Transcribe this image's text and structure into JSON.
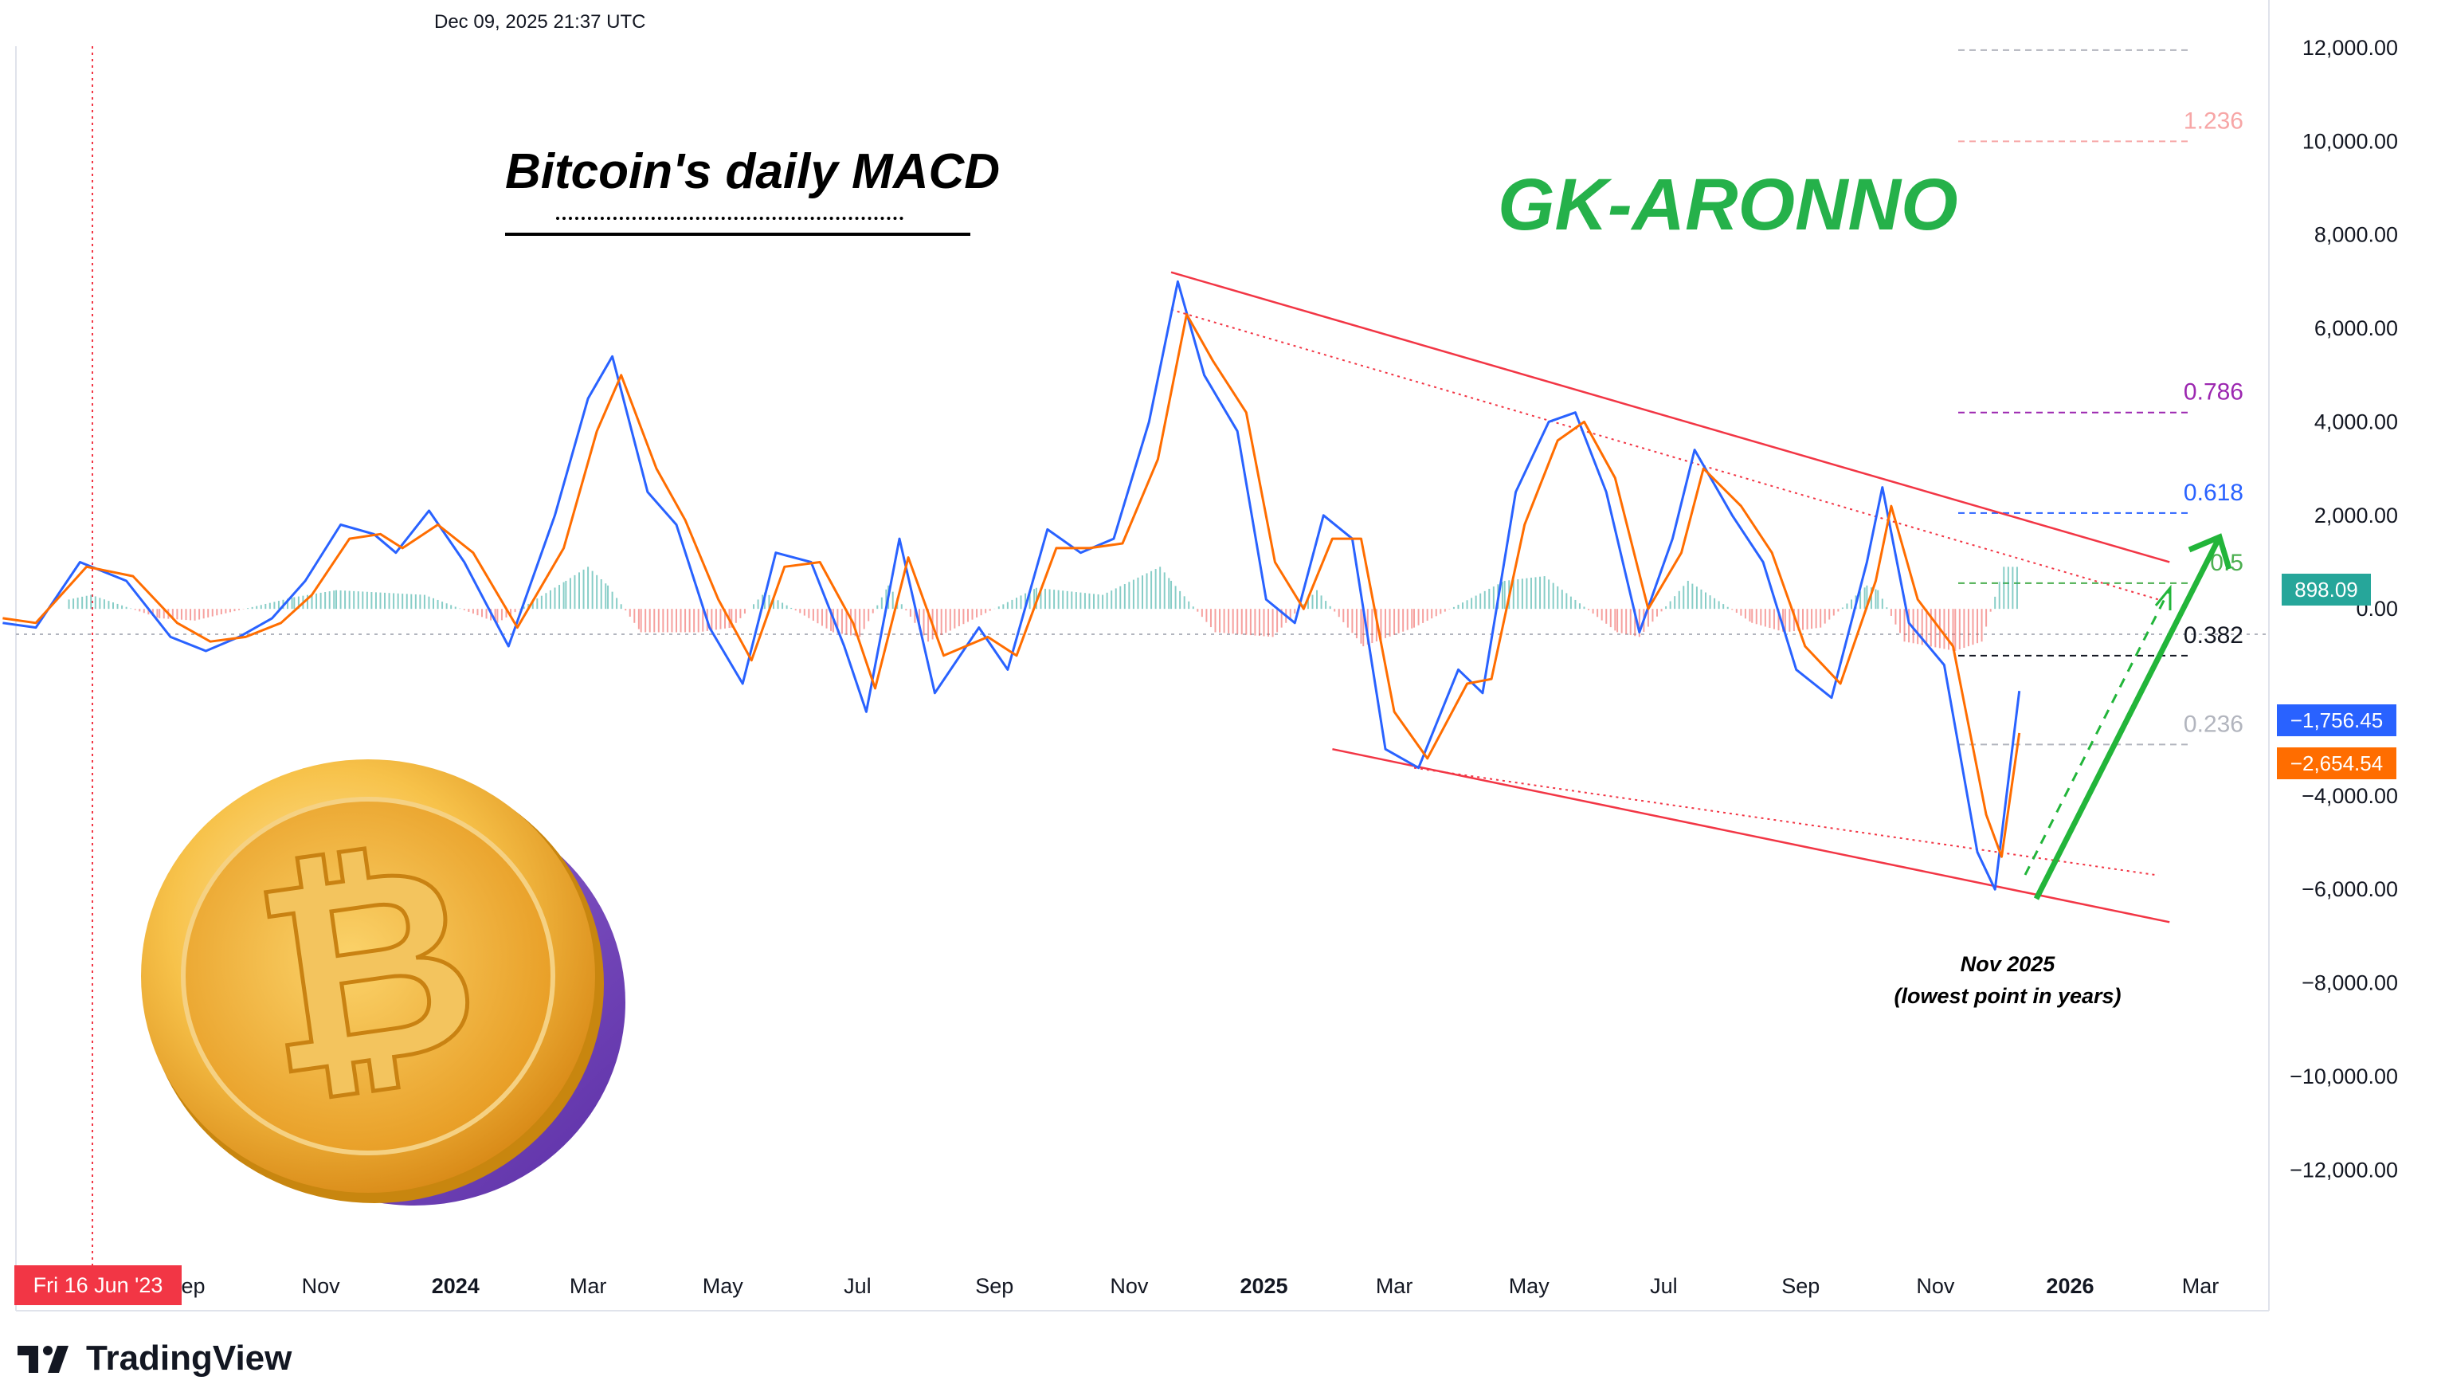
{
  "header": {
    "timestamp": "Dec 09, 2025 21:37 UTC"
  },
  "title": "Bitcoin's daily MACD",
  "watermark_author": "GK-ARONNO",
  "annotation": {
    "line1": "Nov 2025",
    "line2": "(lowest point in years)"
  },
  "crosshair_date_label": "Fri 16 Jun '23",
  "value_badges": {
    "histogram": "898.09",
    "macd": "−1,756.45",
    "signal": "−2,654.54"
  },
  "branding": {
    "name": "TradingView",
    "logo_icon": "tradingview-logo-icon"
  },
  "coin_icon": "bitcoin-coin-icon",
  "colors": {
    "macd": "#2962ff",
    "signal": "#ff6d00",
    "hist_pos": "#26a69a",
    "hist_neg": "#ef5350",
    "channel": "#f23645",
    "arrow": "#22b53a",
    "brand": "#25b14a"
  },
  "chart_data": {
    "type": "line",
    "indicator": "MACD",
    "y_axis": {
      "min": -13000,
      "max": 12000,
      "unit": "",
      "ticks": [
        12000,
        10000,
        8000,
        6000,
        4000,
        2000,
        0,
        -4000,
        -6000,
        -8000,
        -10000,
        -12000
      ],
      "tick_labels": [
        "12,000.00",
        "10,000.00",
        "8,000.00",
        "6,000.00",
        "4,000.00",
        "2,000.00",
        "0.00",
        "−4,000.00",
        "−6,000.00",
        "−8,000.00",
        "−10,000.00",
        "−12,000.00"
      ]
    },
    "x_axis": {
      "start": "2023-06-16",
      "end": "2026-04-01",
      "tick_labels": [
        "Sep",
        "Nov",
        "2024",
        "Mar",
        "May",
        "Jul",
        "Sep",
        "Nov",
        "2025",
        "Mar",
        "May",
        "Jul",
        "Sep",
        "Nov",
        "2026",
        "Mar"
      ],
      "tick_dates": [
        "2023-09-01",
        "2023-11-01",
        "2024-01-01",
        "2024-03-01",
        "2024-05-01",
        "2024-07-01",
        "2024-09-01",
        "2024-11-01",
        "2025-01-01",
        "2025-03-01",
        "2025-05-01",
        "2025-07-01",
        "2025-09-01",
        "2025-11-01",
        "2026-01-01",
        "2026-03-01"
      ],
      "bold_labels": [
        "2024",
        "2025",
        "2026"
      ]
    },
    "series": [
      {
        "name": "MACD",
        "color": "#2962ff",
        "points": [
          [
            "2023-06-10",
            -300
          ],
          [
            "2023-06-25",
            -400
          ],
          [
            "2023-07-15",
            1000
          ],
          [
            "2023-08-05",
            600
          ],
          [
            "2023-08-25",
            -600
          ],
          [
            "2023-09-10",
            -900
          ],
          [
            "2023-09-25",
            -600
          ],
          [
            "2023-10-10",
            -200
          ],
          [
            "2023-10-25",
            600
          ],
          [
            "2023-11-10",
            1800
          ],
          [
            "2023-11-25",
            1600
          ],
          [
            "2023-12-05",
            1200
          ],
          [
            "2023-12-20",
            2100
          ],
          [
            "2024-01-05",
            1000
          ],
          [
            "2024-01-25",
            -800
          ],
          [
            "2024-02-15",
            2000
          ],
          [
            "2024-03-01",
            4500
          ],
          [
            "2024-03-12",
            5400
          ],
          [
            "2024-03-28",
            2500
          ],
          [
            "2024-04-10",
            1800
          ],
          [
            "2024-04-25",
            -400
          ],
          [
            "2024-05-10",
            -1600
          ],
          [
            "2024-05-25",
            1200
          ],
          [
            "2024-06-10",
            1000
          ],
          [
            "2024-06-25",
            -800
          ],
          [
            "2024-07-05",
            -2200
          ],
          [
            "2024-07-20",
            1500
          ],
          [
            "2024-08-05",
            -1800
          ],
          [
            "2024-08-25",
            -400
          ],
          [
            "2024-09-07",
            -1300
          ],
          [
            "2024-09-25",
            1700
          ],
          [
            "2024-10-10",
            1200
          ],
          [
            "2024-10-25",
            1500
          ],
          [
            "2024-11-10",
            4000
          ],
          [
            "2024-11-23",
            7000
          ],
          [
            "2024-12-05",
            5000
          ],
          [
            "2024-12-20",
            3800
          ],
          [
            "2025-01-02",
            200
          ],
          [
            "2025-01-15",
            -300
          ],
          [
            "2025-01-28",
            2000
          ],
          [
            "2025-02-10",
            1500
          ],
          [
            "2025-02-25",
            -3000
          ],
          [
            "2025-03-12",
            -3400
          ],
          [
            "2025-03-30",
            -1300
          ],
          [
            "2025-04-10",
            -1800
          ],
          [
            "2025-04-25",
            2500
          ],
          [
            "2025-05-10",
            4000
          ],
          [
            "2025-05-22",
            4200
          ],
          [
            "2025-06-05",
            2500
          ],
          [
            "2025-06-20",
            -500
          ],
          [
            "2025-07-05",
            1500
          ],
          [
            "2025-07-15",
            3400
          ],
          [
            "2025-08-01",
            2000
          ],
          [
            "2025-08-15",
            1000
          ],
          [
            "2025-08-30",
            -1300
          ],
          [
            "2025-09-15",
            -1900
          ],
          [
            "2025-10-01",
            1000
          ],
          [
            "2025-10-08",
            2600
          ],
          [
            "2025-10-20",
            -300
          ],
          [
            "2025-11-05",
            -1200
          ],
          [
            "2025-11-20",
            -5200
          ],
          [
            "2025-11-28",
            -6000
          ],
          [
            "2025-12-05",
            -3300
          ],
          [
            "2025-12-09",
            -1756
          ]
        ]
      },
      {
        "name": "Signal",
        "color": "#ff6d00",
        "points": [
          [
            "2023-06-10",
            -200
          ],
          [
            "2023-06-25",
            -300
          ],
          [
            "2023-07-18",
            900
          ],
          [
            "2023-08-08",
            700
          ],
          [
            "2023-08-28",
            -300
          ],
          [
            "2023-09-12",
            -700
          ],
          [
            "2023-09-28",
            -600
          ],
          [
            "2023-10-14",
            -300
          ],
          [
            "2023-10-28",
            300
          ],
          [
            "2023-11-14",
            1500
          ],
          [
            "2023-11-28",
            1600
          ],
          [
            "2023-12-08",
            1300
          ],
          [
            "2023-12-24",
            1800
          ],
          [
            "2024-01-09",
            1200
          ],
          [
            "2024-01-29",
            -400
          ],
          [
            "2024-02-19",
            1300
          ],
          [
            "2024-03-05",
            3800
          ],
          [
            "2024-03-16",
            5000
          ],
          [
            "2024-04-01",
            3000
          ],
          [
            "2024-04-14",
            1900
          ],
          [
            "2024-04-29",
            200
          ],
          [
            "2024-05-14",
            -1100
          ],
          [
            "2024-05-29",
            900
          ],
          [
            "2024-06-14",
            1000
          ],
          [
            "2024-06-29",
            -300
          ],
          [
            "2024-07-09",
            -1700
          ],
          [
            "2024-07-24",
            1100
          ],
          [
            "2024-08-09",
            -1000
          ],
          [
            "2024-08-29",
            -600
          ],
          [
            "2024-09-11",
            -1000
          ],
          [
            "2024-09-29",
            1300
          ],
          [
            "2024-10-14",
            1300
          ],
          [
            "2024-10-29",
            1400
          ],
          [
            "2024-11-14",
            3200
          ],
          [
            "2024-11-27",
            6300
          ],
          [
            "2024-12-09",
            5300
          ],
          [
            "2024-12-24",
            4200
          ],
          [
            "2025-01-06",
            1000
          ],
          [
            "2025-01-19",
            0
          ],
          [
            "2025-02-01",
            1500
          ],
          [
            "2025-02-14",
            1500
          ],
          [
            "2025-03-01",
            -2200
          ],
          [
            "2025-03-16",
            -3200
          ],
          [
            "2025-04-03",
            -1600
          ],
          [
            "2025-04-14",
            -1500
          ],
          [
            "2025-04-29",
            1800
          ],
          [
            "2025-05-14",
            3600
          ],
          [
            "2025-05-26",
            4000
          ],
          [
            "2025-06-09",
            2800
          ],
          [
            "2025-06-24",
            0
          ],
          [
            "2025-07-09",
            1200
          ],
          [
            "2025-07-19",
            3000
          ],
          [
            "2025-08-05",
            2200
          ],
          [
            "2025-08-19",
            1200
          ],
          [
            "2025-09-03",
            -800
          ],
          [
            "2025-09-19",
            -1600
          ],
          [
            "2025-10-05",
            600
          ],
          [
            "2025-10-12",
            2200
          ],
          [
            "2025-10-24",
            200
          ],
          [
            "2025-11-09",
            -800
          ],
          [
            "2025-11-24",
            -4400
          ],
          [
            "2025-12-01",
            -5300
          ],
          [
            "2025-12-09",
            -2654
          ]
        ]
      }
    ],
    "histogram": [
      [
        "2023-07-10",
        200
      ],
      [
        "2023-07-20",
        300
      ],
      [
        "2023-08-20",
        -200
      ],
      [
        "2023-09-05",
        -250
      ],
      [
        "2023-10-20",
        250
      ],
      [
        "2023-11-08",
        400
      ],
      [
        "2023-12-18",
        300
      ],
      [
        "2024-01-20",
        -300
      ],
      [
        "2024-02-20",
        600
      ],
      [
        "2024-03-01",
        900
      ],
      [
        "2024-03-10",
        500
      ],
      [
        "2024-03-25",
        -500
      ],
      [
        "2024-04-20",
        -500
      ],
      [
        "2024-05-05",
        -400
      ],
      [
        "2024-05-20",
        350
      ],
      [
        "2024-06-20",
        -500
      ],
      [
        "2024-07-02",
        -600
      ],
      [
        "2024-07-15",
        500
      ],
      [
        "2024-08-02",
        -700
      ],
      [
        "2024-09-20",
        450
      ],
      [
        "2024-10-20",
        300
      ],
      [
        "2024-11-15",
        900
      ],
      [
        "2024-11-20",
        600
      ],
      [
        "2024-12-10",
        -500
      ],
      [
        "2025-01-05",
        -600
      ],
      [
        "2025-01-25",
        400
      ],
      [
        "2025-02-15",
        -800
      ],
      [
        "2025-03-10",
        -400
      ],
      [
        "2025-04-20",
        600
      ],
      [
        "2025-05-08",
        700
      ],
      [
        "2025-06-10",
        -500
      ],
      [
        "2025-06-20",
        -600
      ],
      [
        "2025-07-12",
        600
      ],
      [
        "2025-08-10",
        -300
      ],
      [
        "2025-08-25",
        -500
      ],
      [
        "2025-09-10",
        -400
      ],
      [
        "2025-10-01",
        500
      ],
      [
        "2025-10-06",
        400
      ],
      [
        "2025-10-18",
        -700
      ],
      [
        "2025-11-10",
        -900
      ],
      [
        "2025-11-22",
        -700
      ],
      [
        "2025-12-02",
        900
      ],
      [
        "2025-12-09",
        898
      ]
    ],
    "fibonacci": {
      "levels": [
        {
          "ratio": "1.236",
          "label_color": "#f7a6a6",
          "value": 10000
        },
        {
          "ratio": "0.786",
          "label_color": "#9c27b0",
          "value": 4200
        },
        {
          "ratio": "0.618",
          "label_color": "#2962ff",
          "value": 2050
        },
        {
          "ratio": "0.5",
          "label_color": "#4caf50",
          "value": 550
        },
        {
          "ratio": "0.382",
          "label_color": "#131722",
          "value": -1000
        },
        {
          "ratio": "0.236",
          "label_color": "#b2b5be",
          "value": -2900
        }
      ],
      "top_line_value": 11950
    },
    "trendlines": [
      {
        "name": "channel-upper",
        "from": [
          "2024-11-20",
          7200
        ],
        "to": [
          "2026-02-15",
          1000
        ]
      },
      {
        "name": "channel-lower",
        "from": [
          "2025-02-01",
          -3000
        ],
        "to": [
          "2026-02-15",
          -6700
        ]
      },
      {
        "name": "inner-upper-dotted",
        "from": [
          "2024-11-20",
          6400
        ],
        "to": [
          "2026-02-10",
          200
        ]
      },
      {
        "name": "inner-lower-dotted",
        "from": [
          "2025-03-10",
          -3400
        ],
        "to": [
          "2026-02-10",
          -5700
        ]
      }
    ]
  }
}
